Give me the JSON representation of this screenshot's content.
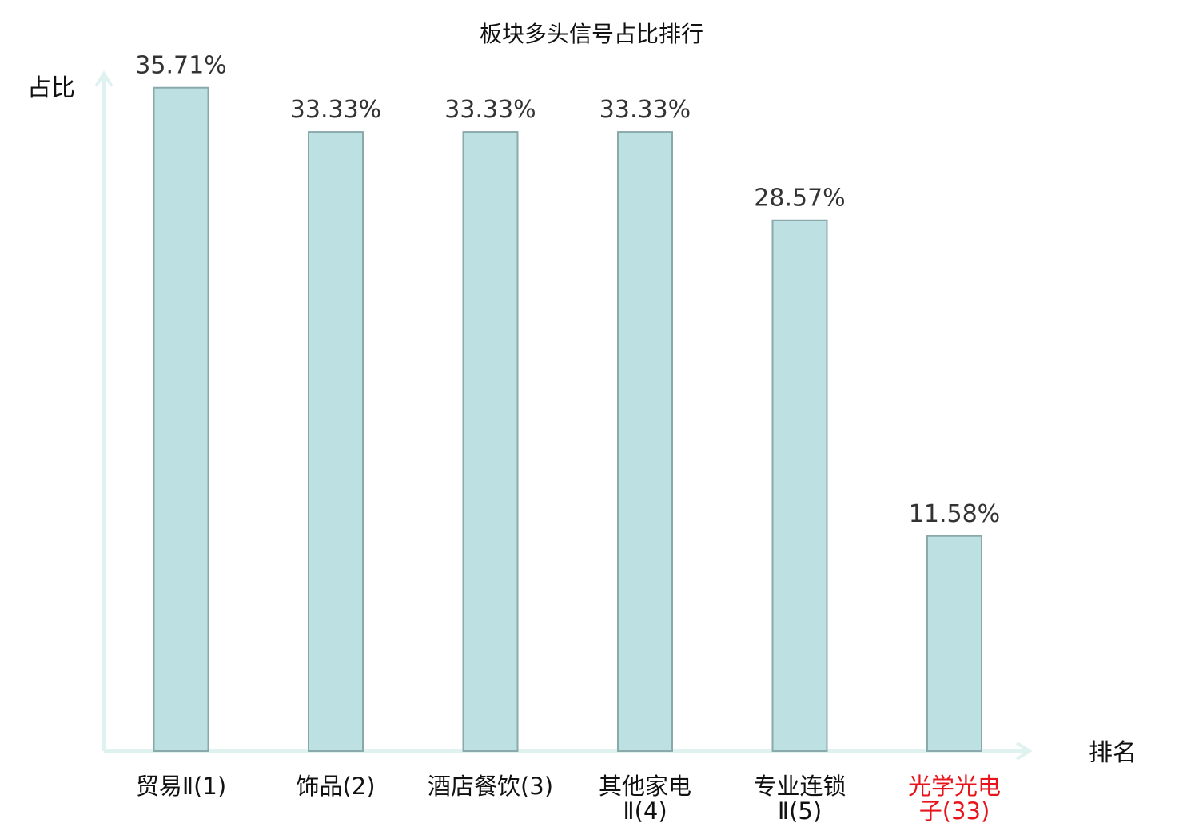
{
  "chart_data": {
    "type": "bar",
    "title": "板块多头信号占比排行",
    "ylabel": "占比",
    "xlabel": "排名",
    "ylim": [
      0,
      40
    ],
    "grid": false,
    "categories": [
      [
        "贸易Ⅱ(1)"
      ],
      [
        "饰品(2)"
      ],
      [
        "酒店餐饮(3)"
      ],
      [
        "其他家电",
        "Ⅱ(4)"
      ],
      [
        "专业连锁",
        "Ⅱ(5)"
      ],
      [
        "光学光电",
        "子(33)"
      ]
    ],
    "values": [
      35.71,
      33.33,
      33.33,
      33.33,
      28.57,
      11.58
    ],
    "value_labels": [
      "35.71%",
      "33.33%",
      "33.33%",
      "33.33%",
      "28.57%",
      "11.58%"
    ],
    "highlight_index": 5,
    "colors": {
      "bar_fill": "#bde0e3",
      "bar_stroke": "#8aa9ab",
      "axis": "#dff2f0",
      "highlight_label": "#e8141c",
      "label": "#111111",
      "value_label": "#333333"
    }
  }
}
